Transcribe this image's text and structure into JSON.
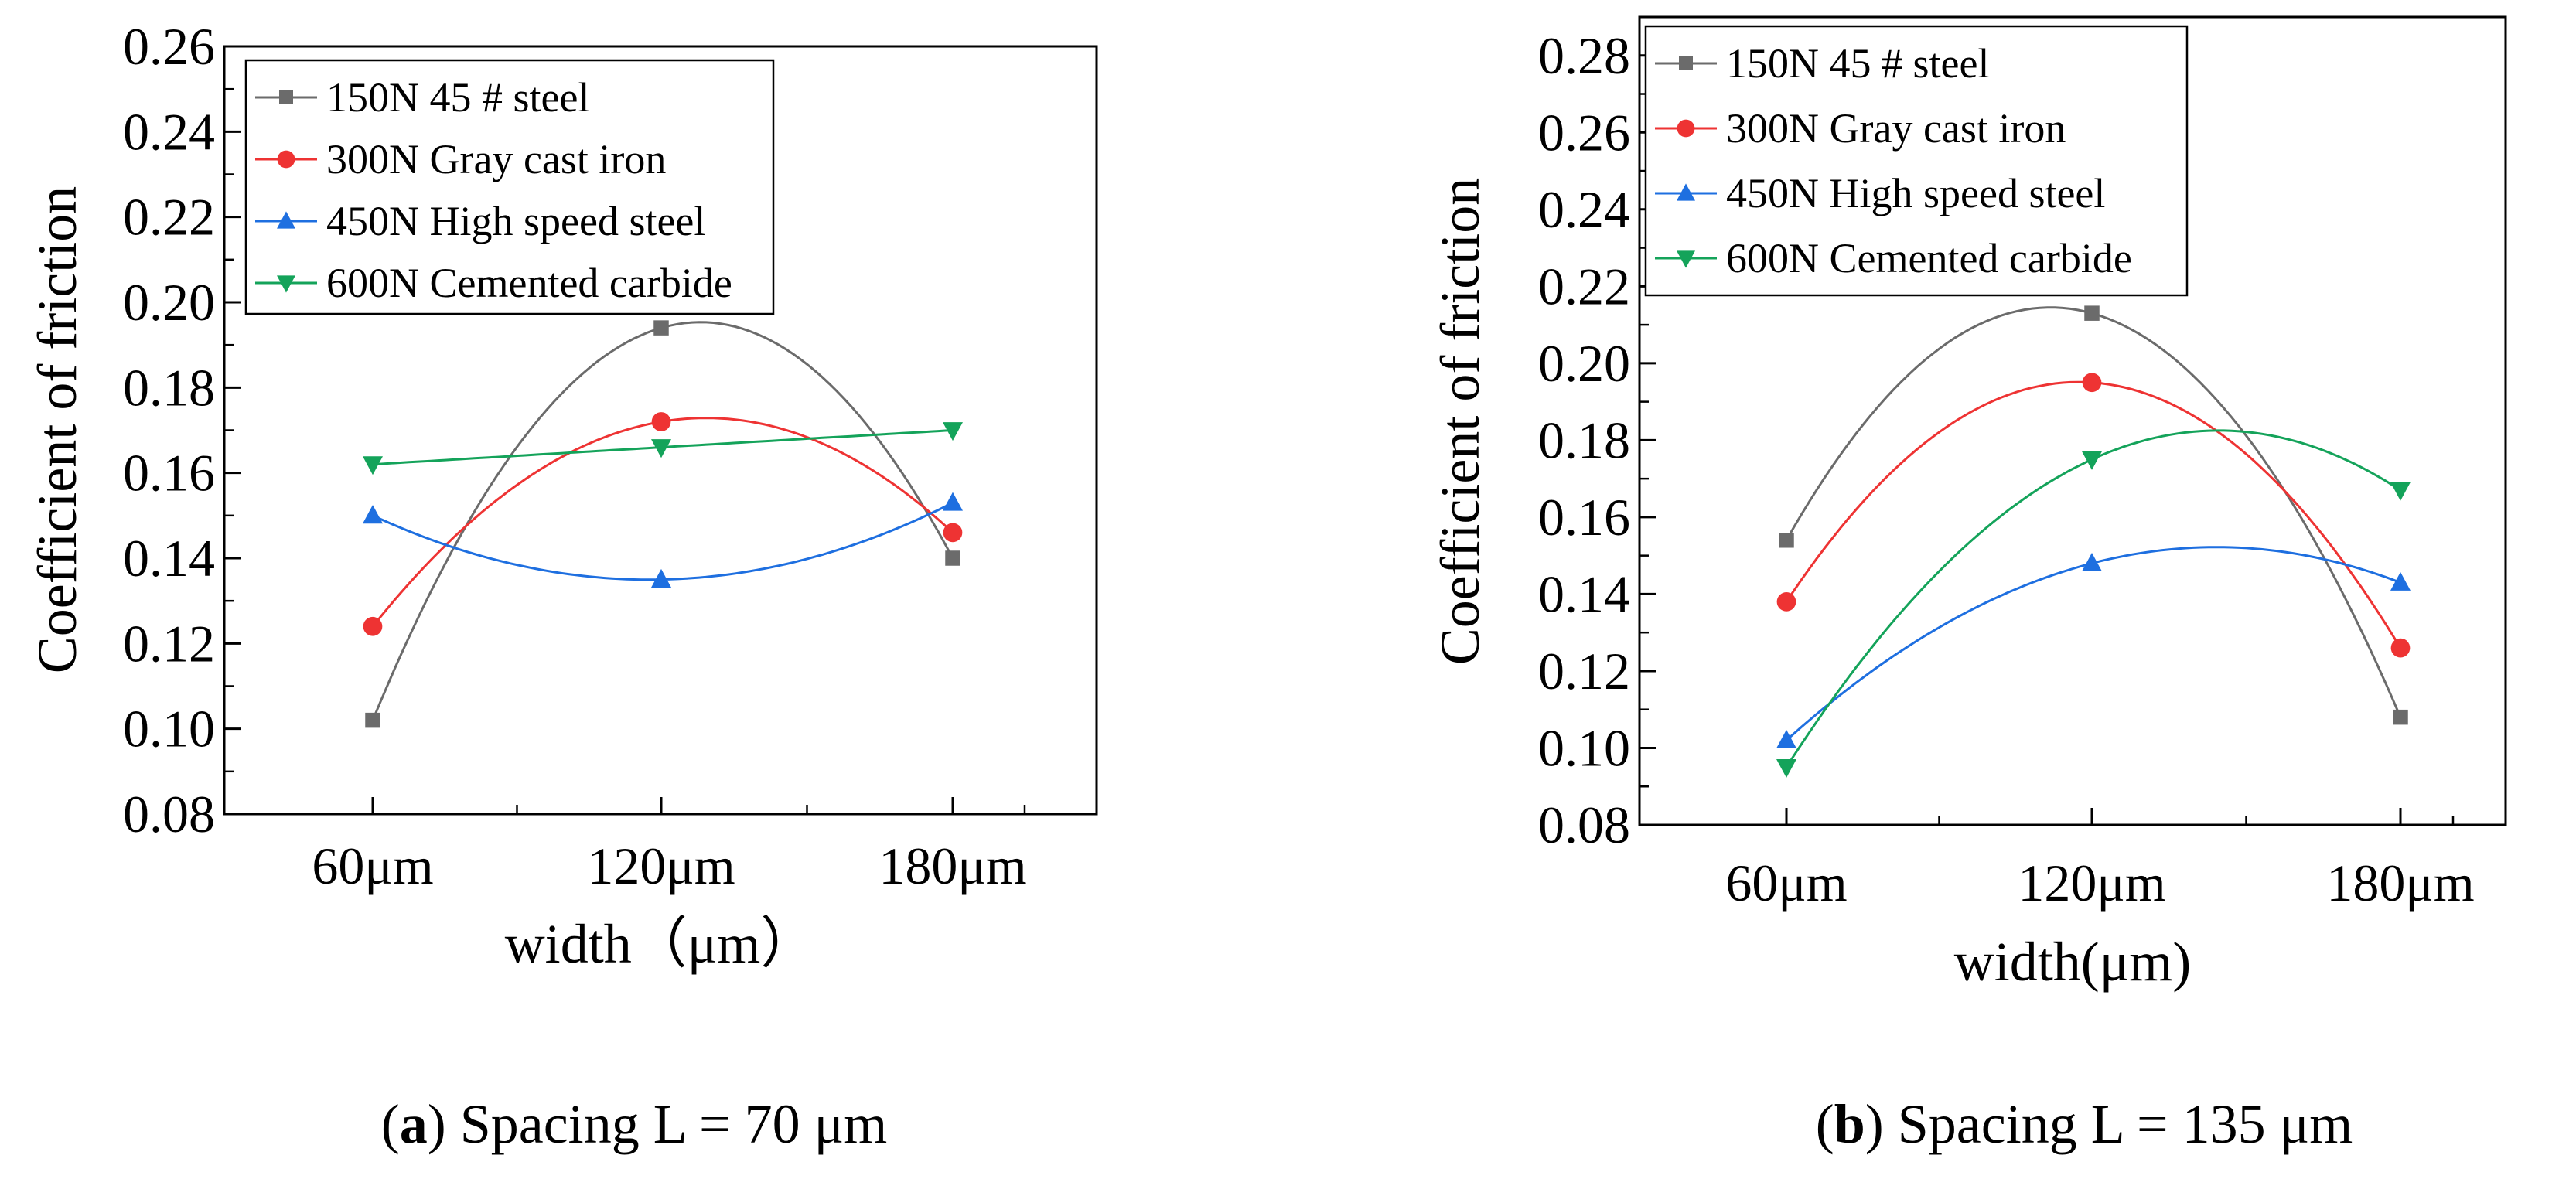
{
  "colors": {
    "s150": "#6b6b6b",
    "s300": "#ee3333",
    "s450": "#1e6fe0",
    "s600": "#14a35a"
  },
  "chart_data": [
    {
      "type": "line",
      "panel": "a",
      "xlabel": "width（μm）",
      "ylabel": "Coefficient of friction",
      "categories": [
        "60μm",
        "120μm",
        "180μm"
      ],
      "yticks": [
        "0.08",
        "0.10",
        "0.12",
        "0.14",
        "0.16",
        "0.18",
        "0.20",
        "0.22",
        "0.24",
        "0.26"
      ],
      "ylim": [
        0.08,
        0.26
      ],
      "legend_position": "top-left",
      "series": [
        {
          "name": "150N 45 # steel",
          "color_key": "s150",
          "marker": "square",
          "values": [
            0.102,
            0.194,
            0.14
          ]
        },
        {
          "name": "300N Gray cast iron",
          "color_key": "s300",
          "marker": "circle",
          "values": [
            0.124,
            0.172,
            0.146
          ]
        },
        {
          "name": "450N High speed steel",
          "color_key": "s450",
          "marker": "triangle-up",
          "values": [
            0.15,
            0.135,
            0.153
          ]
        },
        {
          "name": "600N Cemented carbide",
          "color_key": "s600",
          "marker": "triangle-down",
          "values": [
            0.162,
            0.166,
            0.17
          ]
        }
      ],
      "caption_letter": "a",
      "caption_text": " Spacing L = 70 μm"
    },
    {
      "type": "line",
      "panel": "b",
      "xlabel": "width(μm)",
      "ylabel": "Coefficient of friction",
      "categories": [
        "60μm",
        "120μm",
        "180μm"
      ],
      "yticks": [
        "0.08",
        "0.10",
        "0.12",
        "0.14",
        "0.16",
        "0.18",
        "0.20",
        "0.22",
        "0.24",
        "0.26",
        "0.28"
      ],
      "ylim": [
        0.08,
        0.29
      ],
      "legend_position": "top-left",
      "series": [
        {
          "name": "150N 45 # steel",
          "color_key": "s150",
          "marker": "square",
          "values": [
            0.154,
            0.213,
            0.108
          ]
        },
        {
          "name": "300N Gray cast iron",
          "color_key": "s300",
          "marker": "circle",
          "values": [
            0.138,
            0.195,
            0.126
          ]
        },
        {
          "name": "450N High speed steel",
          "color_key": "s450",
          "marker": "triangle-up",
          "values": [
            0.102,
            0.148,
            0.143
          ]
        },
        {
          "name": "600N Cemented carbide",
          "color_key": "s600",
          "marker": "triangle-down",
          "values": [
            0.095,
            0.175,
            0.167
          ]
        }
      ],
      "caption_letter": "b",
      "caption_text": " Spacing L = 135 μm"
    }
  ]
}
